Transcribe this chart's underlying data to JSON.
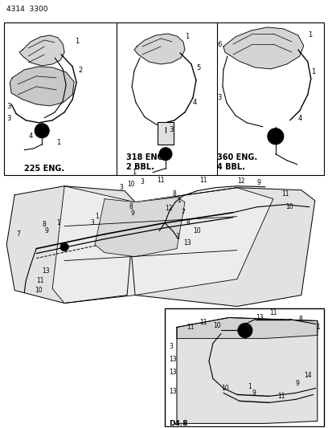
{
  "bg_color": "#ffffff",
  "line_color": "#000000",
  "fig_width": 4.08,
  "fig_height": 5.33,
  "dpi": 100,
  "header_text": "4314  3300",
  "label_panel1": "225 ENG.",
  "label_panel2": "318 ENG.\n2 BBL.",
  "label_panel3": "360 ENG.\n4 BBL.",
  "bottom_label": "D4.8"
}
